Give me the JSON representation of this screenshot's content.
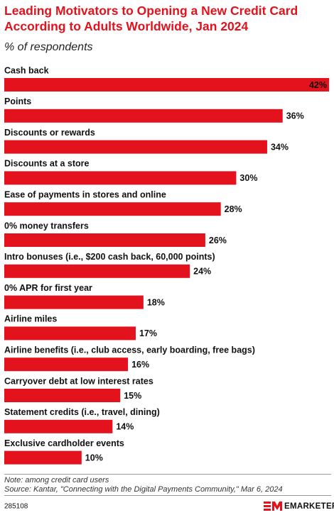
{
  "chart_data": {
    "type": "bar",
    "title": "Leading Motivators to Opening a New Credit Card According to Adults Worldwide, Jan 2024",
    "subtitle": "% of respondents",
    "categories": [
      "Cash back",
      "Points",
      "Discounts or rewards",
      "Discounts at a store",
      "Ease of payments in stores and online",
      "0% money transfers",
      "Intro bonuses (i.e., $200 cash back, 60,000 points)",
      "0% APR for first year",
      "Airline miles",
      "Airline benefits (i.e., club access, early boarding, free bags)",
      "Carryover debt at low interest rates",
      "Statement credits (i.e., travel, dining)",
      "Exclusive cardholder events"
    ],
    "values": [
      42,
      36,
      34,
      30,
      28,
      26,
      24,
      18,
      17,
      16,
      15,
      14,
      10
    ],
    "value_labels": [
      "42%",
      "36%",
      "34%",
      "30%",
      "28%",
      "26%",
      "24%",
      "18%",
      "17%",
      "16%",
      "15%",
      "14%",
      "10%"
    ],
    "color": "#e3121c",
    "note": "Note: among credit card users",
    "source": "Source: Kantar, \"Connecting with the Digital Payments Community,\" Mar 6, 2024",
    "chart_id": "285108",
    "logo": "EMARKETER"
  }
}
